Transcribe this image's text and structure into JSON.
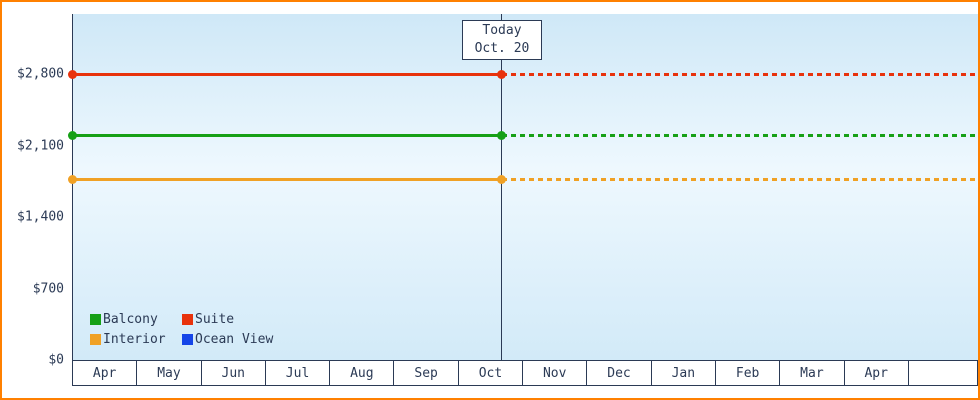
{
  "chart_data": {
    "type": "line",
    "title": "",
    "x_categories": [
      "Apr",
      "May",
      "Jun",
      "Jul",
      "Aug",
      "Sep",
      "Oct",
      "Nov",
      "Dec",
      "Jan",
      "Feb",
      "Mar",
      "Apr"
    ],
    "y_ticks": [
      {
        "label": "$2,800",
        "value": 2800
      },
      {
        "label": "$2,100",
        "value": 2100
      },
      {
        "label": "$1,400",
        "value": 1400
      },
      {
        "label": "$700",
        "value": 700
      },
      {
        "label": "$0",
        "value": 0
      }
    ],
    "ylim": [
      0,
      3390
    ],
    "grid": false,
    "legend_position": "bottom-left",
    "today": {
      "line1": "Today",
      "line2": "Oct. 20",
      "x_fraction": 0.4746
    },
    "series": [
      {
        "name": "Balcony",
        "color": "#16a016",
        "value": 2199,
        "visible": true,
        "style": "solid-then-dotted"
      },
      {
        "name": "Suite",
        "color": "#e8320c",
        "value": 2799,
        "visible": true,
        "style": "solid-then-dotted"
      },
      {
        "name": "Interior",
        "color": "#f0a125",
        "value": 1769,
        "visible": true,
        "style": "solid-then-dotted"
      },
      {
        "name": "Ocean View",
        "color": "#1545e8",
        "value": null,
        "visible": false,
        "style": "solid-then-dotted"
      }
    ]
  },
  "colors": {
    "frame_border": "#ff8000",
    "axis": "#2b3a55",
    "text": "#2b3a55",
    "plot_gradient_top": "#cfe8f7",
    "plot_gradient_mid": "#eef8fe",
    "plot_gradient_bottom": "#d2eaf8"
  }
}
